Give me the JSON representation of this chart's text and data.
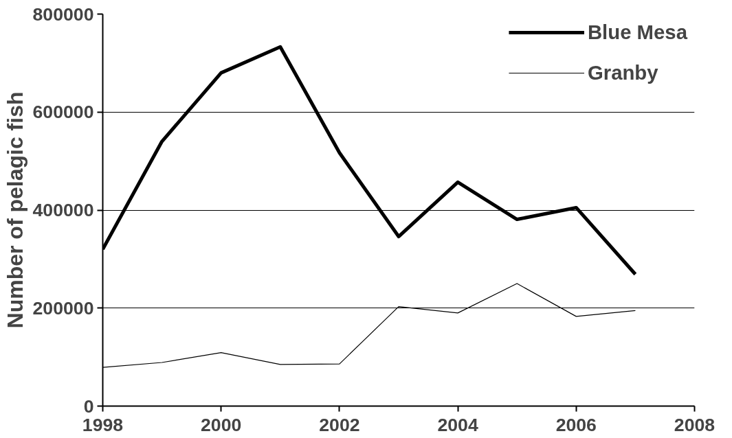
{
  "chart_data": {
    "type": "line",
    "ylabel": "Number of pelagic fish",
    "x": [
      1998,
      1999,
      2000,
      2001,
      2002,
      2003,
      2004,
      2005,
      2006,
      2007
    ],
    "series": [
      {
        "name": "Blue Mesa",
        "color": "#000000",
        "values": [
          320000,
          540000,
          680000,
          733000,
          517000,
          346000,
          457000,
          381000,
          405000,
          269000
        ]
      },
      {
        "name": "Granby",
        "color": "#000000",
        "values": [
          79000,
          89000,
          109000,
          85000,
          86000,
          203000,
          190000,
          250000,
          183000,
          195000
        ]
      }
    ],
    "xlim": [
      1998,
      2008
    ],
    "xticks": [
      1998,
      2000,
      2002,
      2004,
      2006,
      2008
    ],
    "ylim": [
      0,
      800000
    ],
    "yticks": [
      0,
      200000,
      400000,
      600000,
      800000
    ],
    "grid": "y",
    "legend": "top right",
    "marker": "none",
    "line_style": "solid"
  }
}
